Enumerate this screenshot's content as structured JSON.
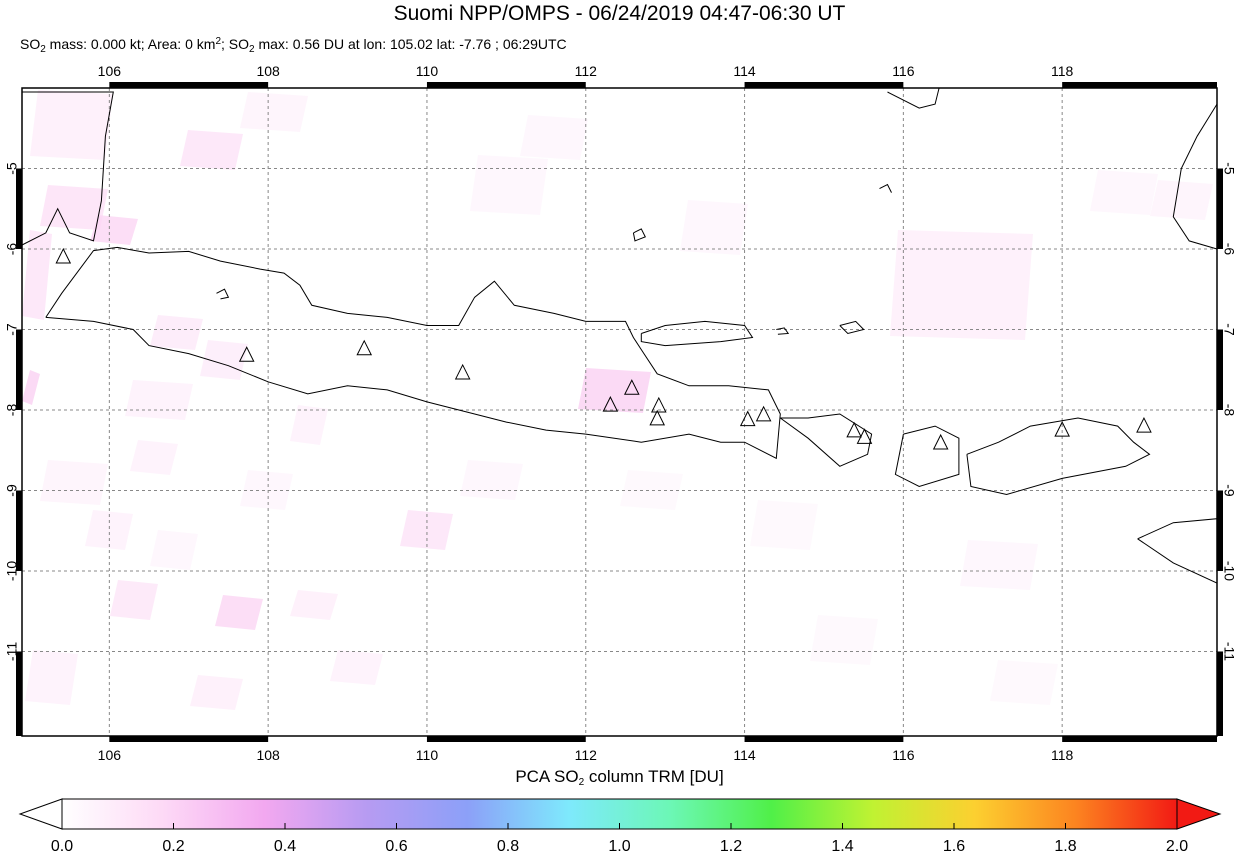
{
  "title": "Suomi NPP/OMPS - 06/24/2019 04:47-06:30 UT",
  "subtitle": {
    "part1": "SO",
    "sub1": "2",
    "part2": " mass: 0.000 kt; Area: 0 km",
    "sup1": "2",
    "part3": "; SO",
    "sub2": "2",
    "part4": " max: 0.56 DU at lon: 105.02 lat: -7.76 ; 06:29UTC"
  },
  "map": {
    "lon_range": [
      104.9,
      119.95
    ],
    "lat_range": [
      -12.05,
      -4.0
    ],
    "lon_ticks": [
      "106",
      "108",
      "110",
      "112",
      "114",
      "116",
      "118"
    ],
    "lat_ticks": [
      "-5",
      "-6",
      "-7",
      "-8",
      "-9",
      "-10",
      "-11"
    ],
    "volcano_icon": "triangle-icon",
    "volcanoes": [
      [
        105.42,
        -6.1
      ],
      [
        107.73,
        -7.32
      ],
      [
        109.21,
        -7.24
      ],
      [
        110.45,
        -7.54
      ],
      [
        112.31,
        -7.94
      ],
      [
        112.58,
        -7.73
      ],
      [
        112.92,
        -7.95
      ],
      [
        112.9,
        -8.11
      ],
      [
        114.04,
        -8.12
      ],
      [
        114.24,
        -8.06
      ],
      [
        115.38,
        -8.26
      ],
      [
        115.51,
        -8.34
      ],
      [
        116.47,
        -8.41
      ],
      [
        118.0,
        -8.25
      ],
      [
        119.03,
        -8.2
      ]
    ],
    "so2_color": "#fbd6f4"
  },
  "colorbar": {
    "label_main": "PCA SO",
    "label_sub": "2",
    "label_rest": " column TRM [DU]",
    "ticks": [
      "0.0",
      "0.2",
      "0.4",
      "0.6",
      "0.8",
      "1.0",
      "1.2",
      "1.4",
      "1.6",
      "1.8",
      "2.0"
    ],
    "range": [
      0,
      2
    ],
    "colors": [
      "#ffffff",
      "#fdd9f6",
      "#f2a8f0",
      "#b79bf2",
      "#8ca0f8",
      "#7ee9fc",
      "#6cf7b6",
      "#50f048",
      "#c0f232",
      "#fcd030",
      "#fc8420",
      "#f21a14"
    ]
  }
}
